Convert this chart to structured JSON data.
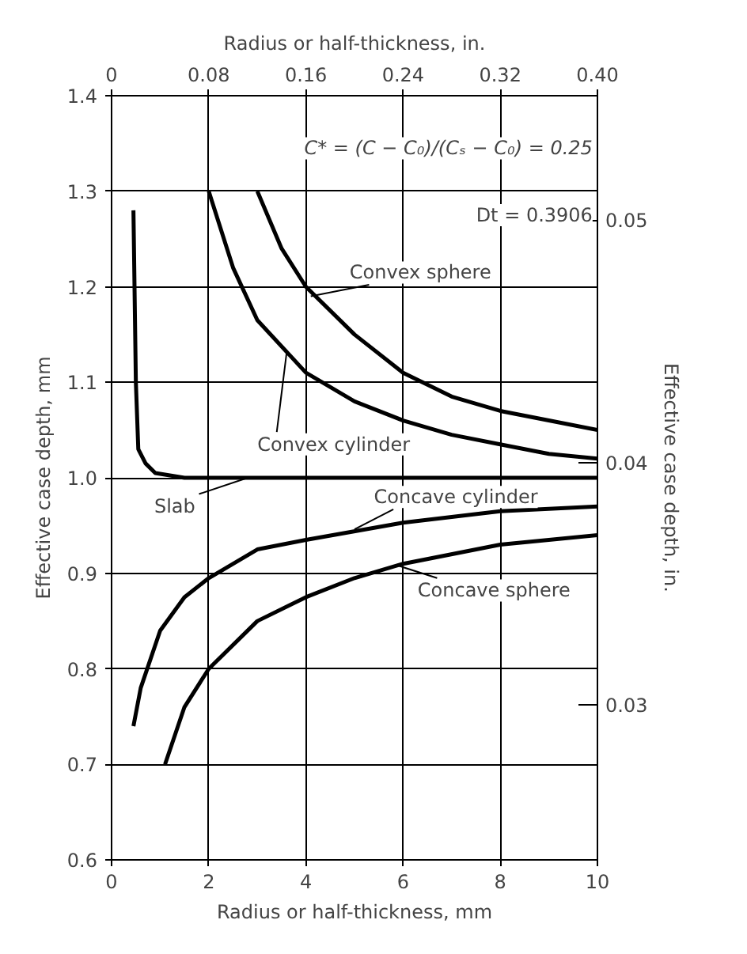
{
  "chart_data": {
    "type": "line",
    "xlabel": "Radius or half-thickness, mm",
    "ylabel": "Effective case depth, mm",
    "y2label": "Effective case depth, in.",
    "x2label": "Radius or half-thickness, in.",
    "xlim": [
      0,
      10
    ],
    "xticks": [
      0,
      2,
      4,
      6,
      8,
      10
    ],
    "ylim": [
      0.6,
      1.4
    ],
    "yticks": [
      0.6,
      0.7,
      0.8,
      0.9,
      {
        "value": 1.0,
        "label": "1.0"
      },
      1.1,
      1.2,
      1.3,
      1.4
    ],
    "x2lim": [
      0,
      0.4
    ],
    "x2ticks": [
      0,
      0.08,
      0.16,
      0.24,
      0.32,
      {
        "value": 0.4,
        "label": "0.40"
      }
    ],
    "y2lim": [
      0.02362,
      0.05512
    ],
    "y2ticks": [
      0.03,
      0.04,
      0.05
    ],
    "grid": true,
    "annotations": [
      "C* = (C − C₀)/(Cₛ − C₀) = 0.25",
      "Dt = 0.3906"
    ],
    "series": [
      {
        "name": "Convex sphere",
        "color": "#000000",
        "x": [
          3.0,
          3.5,
          4,
          5,
          6,
          7,
          8,
          9,
          10
        ],
        "values": [
          1.3,
          1.24,
          1.2,
          1.15,
          1.11,
          1.085,
          1.07,
          1.06,
          1.05
        ]
      },
      {
        "name": "Convex cylinder",
        "color": "#000000",
        "x": [
          2.0,
          2.5,
          3,
          4,
          5,
          6,
          7,
          8,
          9,
          10
        ],
        "values": [
          1.3,
          1.22,
          1.165,
          1.11,
          1.08,
          1.06,
          1.045,
          1.035,
          1.025,
          1.02
        ]
      },
      {
        "name": "Slab",
        "color": "#000000",
        "x": [
          0.45,
          0.5,
          0.55,
          0.7,
          0.9,
          1.5,
          4,
          10
        ],
        "values": [
          1.28,
          1.1,
          1.03,
          1.015,
          1.005,
          1.0,
          1.0,
          1.0
        ]
      },
      {
        "name": "Concave cylinder",
        "color": "#000000",
        "x": [
          0.45,
          0.6,
          1,
          1.5,
          2,
          3,
          4,
          6,
          8,
          10
        ],
        "values": [
          0.74,
          0.78,
          0.84,
          0.875,
          0.895,
          0.925,
          0.935,
          0.953,
          0.965,
          0.97
        ]
      },
      {
        "name": "Concave sphere",
        "color": "#000000",
        "x": [
          1.1,
          1.5,
          2,
          3,
          4,
          5,
          6,
          8,
          10
        ],
        "values": [
          0.7,
          0.76,
          0.8,
          0.85,
          0.875,
          0.895,
          0.91,
          0.93,
          0.94
        ]
      }
    ]
  }
}
